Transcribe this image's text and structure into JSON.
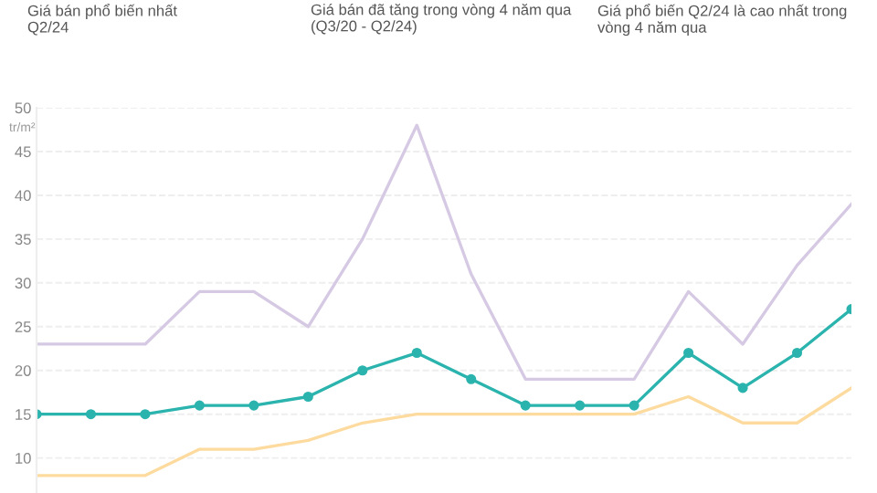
{
  "chart_data": {
    "type": "line",
    "annotations": [
      "Giá bán phổ biến nhất\nQ2/24",
      "Giá bán đã tăng trong vòng 4 năm qua\n(Q3/20 - Q2/24)",
      "Giá phổ biến Q2/24 là cao nhất trong\nvòng 4 năm qua"
    ],
    "ylabel": "tr/m²",
    "categories": [
      null,
      null,
      null,
      null,
      null,
      null,
      null,
      null,
      null,
      null,
      null,
      null,
      null,
      null,
      null,
      null
    ],
    "series": [
      {
        "color": "#d6c9e4",
        "marker": "none",
        "values": [
          23,
          23,
          23,
          29,
          29,
          25,
          35,
          48,
          31,
          19,
          19,
          19,
          29,
          23,
          32,
          39
        ]
      },
      {
        "color": "#2bb3ae",
        "marker": "circle",
        "values": [
          15,
          15,
          15,
          16,
          16,
          17,
          20,
          22,
          19,
          16,
          16,
          16,
          22,
          18,
          22,
          27
        ]
      },
      {
        "color": "#fddb9f",
        "marker": "none",
        "values": [
          8,
          8,
          8,
          11,
          11,
          12,
          14,
          15,
          15,
          15,
          15,
          15,
          17,
          14,
          14,
          18
        ]
      }
    ],
    "ylim": [
      6,
      50
    ],
    "yticks": [
      10,
      15,
      20,
      25,
      30,
      35,
      40,
      45,
      50
    ],
    "grid": "y",
    "tick_labels": "y"
  }
}
